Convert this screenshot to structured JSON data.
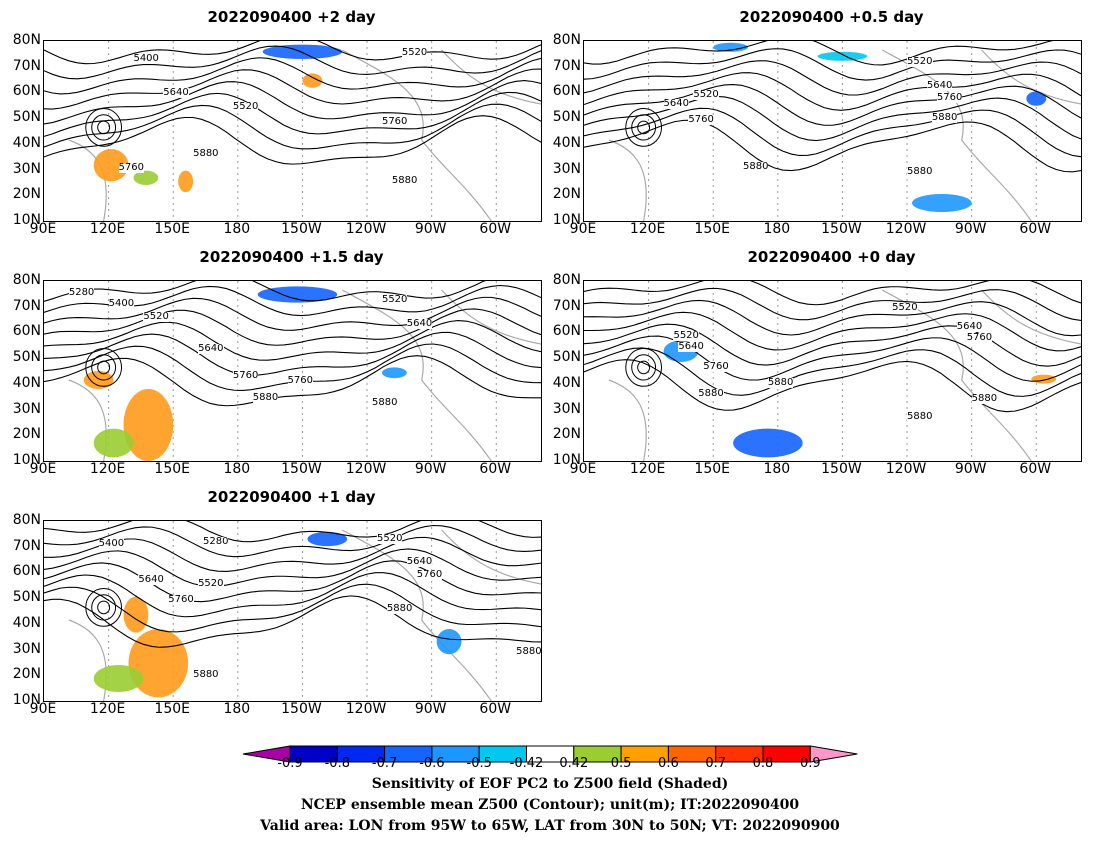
{
  "panels": [
    {
      "title": "2022090400 +2 day",
      "contour_labels": [
        "5400",
        "5520",
        "5640",
        "5520",
        "5760",
        "5760",
        "5880",
        "5880"
      ]
    },
    {
      "title": "2022090400 +0.5 day",
      "contour_labels": [
        "5520",
        "5640",
        "5760",
        "5880",
        "5520",
        "5640",
        "5760",
        "5880",
        "5880"
      ]
    },
    {
      "title": "2022090400 +1.5 day",
      "contour_labels": [
        "5280",
        "5400",
        "5520",
        "5520",
        "5640",
        "5640",
        "5760",
        "5760",
        "5880",
        "5880"
      ]
    },
    {
      "title": "2022090400 +0 day",
      "contour_labels": [
        "5520",
        "5640",
        "5760",
        "5520",
        "5640",
        "5760",
        "5880",
        "5880",
        "5880",
        "5880"
      ]
    },
    {
      "title": "2022090400 +1 day",
      "contour_labels": [
        "5400",
        "5280",
        "5520",
        "5640",
        "5640",
        "5520",
        "5760",
        "5760",
        "5880",
        "5880",
        "5880"
      ]
    }
  ],
  "lat_labels": [
    "80N",
    "70N",
    "60N",
    "50N",
    "40N",
    "30N",
    "20N",
    "10N"
  ],
  "lon_labels": [
    "90E",
    "120E",
    "150E",
    "180",
    "150W",
    "120W",
    "90W",
    "60W"
  ],
  "colorbar": {
    "labels": [
      "-0.9",
      "-0.8",
      "-0.7",
      "-0.6",
      "-0.5",
      "-0.42",
      "0.42",
      "0.5",
      "0.6",
      "0.7",
      "0.8",
      "0.9"
    ],
    "colors": [
      "#a600a6",
      "#0000c8",
      "#0028f0",
      "#1464ff",
      "#1e96ff",
      "#00c8f0",
      "#ffffff",
      "#9acd32",
      "#ffa000",
      "#ff6400",
      "#ff3200",
      "#ff0000",
      "#ff96c8"
    ]
  },
  "caption": {
    "line1": "Sensitivity of EOF PC2 to Z500 field (Shaded)",
    "line2": "NCEP ensemble mean Z500 (Contour); unit(m); IT:2022090400",
    "line3": "Valid area: LON from 95W to 65W, LAT from 30N to 50N; VT: 2022090900"
  }
}
